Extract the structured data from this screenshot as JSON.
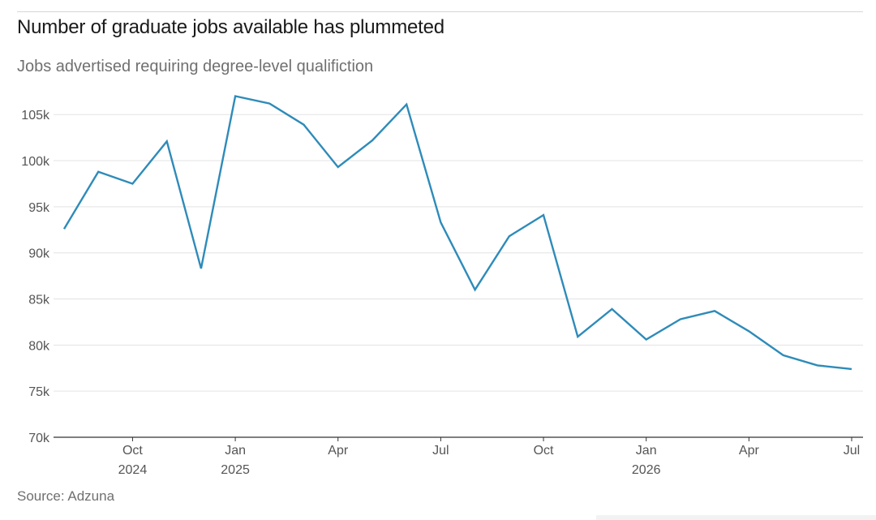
{
  "header": {
    "title": "Number of graduate jobs available has plummeted",
    "subtitle": "Jobs advertised requiring degree-level qualifiction"
  },
  "footer": {
    "source": "Source: Adzuna"
  },
  "colors": {
    "line": "#2e8bb9",
    "grid": "#e3e3e3",
    "baseline": "#333333",
    "tick_text": "#555555"
  },
  "chart_data": {
    "type": "line",
    "title": "Number of graduate jobs available has plummeted",
    "subtitle": "Jobs advertised requiring degree-level qualifiction",
    "xlabel": "",
    "ylabel": "",
    "ylim": [
      70000,
      107000
    ],
    "yticks": [
      70000,
      75000,
      80000,
      85000,
      90000,
      95000,
      100000,
      105000
    ],
    "ytick_labels": [
      "70k",
      "75k",
      "80k",
      "85k",
      "90k",
      "95k",
      "100k",
      "105k"
    ],
    "grid": true,
    "legend": "none",
    "xticks": [
      {
        "month": "2024-10",
        "label": "Oct",
        "year": "2024"
      },
      {
        "month": "2025-01",
        "label": "Jan",
        "year": "2025"
      },
      {
        "month": "2025-04",
        "label": "Apr",
        "year": ""
      },
      {
        "month": "2025-07",
        "label": "Jul",
        "year": ""
      },
      {
        "month": "2025-10",
        "label": "Oct",
        "year": ""
      },
      {
        "month": "2026-01",
        "label": "Jan",
        "year": "2026"
      },
      {
        "month": "2026-04",
        "label": "Apr",
        "year": ""
      },
      {
        "month": "2026-07",
        "label": "Jul",
        "year": ""
      }
    ],
    "series": [
      {
        "x": [
          "2024-08",
          "2024-09",
          "2024-10",
          "2024-11",
          "2024-12",
          "2025-01",
          "2025-02",
          "2025-03",
          "2025-04",
          "2025-05",
          "2025-06",
          "2025-07",
          "2025-08",
          "2025-09",
          "2025-10",
          "2025-11",
          "2025-12",
          "2026-01",
          "2026-02",
          "2026-03",
          "2026-04",
          "2026-05",
          "2026-06",
          "2026-07"
        ],
        "values": [
          92600,
          98800,
          97500,
          102100,
          88300,
          107000,
          106200,
          103900,
          99300,
          102200,
          106100,
          93300,
          86000,
          91800,
          94100,
          80900,
          83900,
          80600,
          82800,
          83700,
          81500,
          78900,
          77800,
          77400
        ]
      }
    ]
  }
}
